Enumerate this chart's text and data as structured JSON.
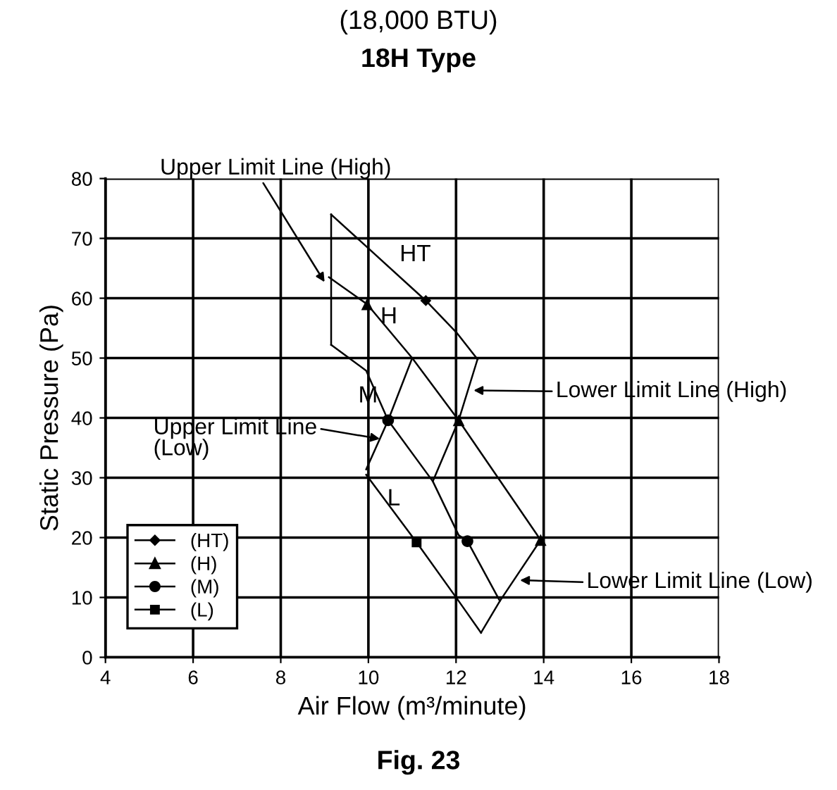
{
  "chart_data": {
    "type": "line",
    "title": "(18,000 BTU)",
    "subtitle": "18H Type",
    "xlabel": "Air Flow (m³/minute)",
    "ylabel": "Static Pressure (Pa)",
    "xlim": [
      4,
      18
    ],
    "xticks": [
      4,
      6,
      8,
      10,
      12,
      14,
      16,
      18
    ],
    "ylim": [
      0,
      80
    ],
    "yticks": [
      0,
      10,
      20,
      30,
      40,
      50,
      60,
      70,
      80
    ],
    "grid": true,
    "legend": "bottom left",
    "line_style": "solid",
    "series": [
      {
        "color": "#000000",
        "x": [
          9.15,
          11.31,
          12.03,
          12.49
        ],
        "values": [
          74,
          59.6,
          54.1,
          49.8
        ]
      },
      {
        "color": "#000000",
        "x": [
          9.1,
          9.97,
          11.0,
          12.06,
          13.93
        ],
        "values": [
          63.5,
          59,
          50,
          39.6,
          19.6
        ]
      },
      {
        "color": "#000000",
        "x": [
          9.15,
          9.95,
          10.45,
          11.47,
          12.06,
          12.26,
          13.0
        ],
        "values": [
          52.2,
          47.9,
          39.6,
          29.4,
          20.4,
          19.4,
          9.4
        ]
      },
      {
        "color": "#000000",
        "x": [
          9.95,
          11.1,
          12.06,
          12.57
        ],
        "values": [
          30.5,
          19.2,
          9.4,
          4.1
        ]
      },
      {
        "color": "#000000",
        "x": [
          9.15,
          9.15
        ],
        "values": [
          52.2,
          74
        ]
      },
      {
        "color": "#000000",
        "x": [
          12.49,
          12.06,
          11.47
        ],
        "values": [
          49.8,
          39.6,
          29.4
        ]
      },
      {
        "color": "#000000",
        "x": [
          9.95,
          10.45,
          11.0
        ],
        "values": [
          31.4,
          39.6,
          50
        ]
      },
      {
        "color": "#000000",
        "x": [
          12.57,
          13.0,
          13.93
        ],
        "values": [
          4.1,
          9.4,
          19.6
        ]
      },
      {
        "name": "(HT)",
        "type": "scatter",
        "color": "#000000",
        "marker": "diamond",
        "x": [
          11.31
        ],
        "values": [
          59.6
        ]
      },
      {
        "name": "(H)",
        "type": "scatter",
        "color": "#000000",
        "marker": "triangle",
        "x": [
          9.97,
          12.06,
          13.93
        ],
        "values": [
          59,
          39.6,
          19.6
        ]
      },
      {
        "name": "(M)",
        "type": "scatter",
        "color": "#000000",
        "marker": "circle",
        "x": [
          10.45,
          12.26
        ],
        "values": [
          39.6,
          19.4
        ]
      },
      {
        "name": "(L)",
        "type": "scatter",
        "color": "#000000",
        "marker": "square",
        "x": [
          11.1
        ],
        "values": [
          19.2
        ]
      }
    ],
    "annotations": [
      {
        "text": "Upper Limit Line (High)",
        "x": 9.0,
        "y": 62.7
      },
      "Lower Limit Line (High)",
      {
        "text": "Upper Limit Line\n(Low)",
        "x": 10.26,
        "y": 36.5
      },
      "Lower Limit Line (Low)",
      "HT",
      "H",
      "M",
      "L",
      "Fig. 23"
    ]
  }
}
